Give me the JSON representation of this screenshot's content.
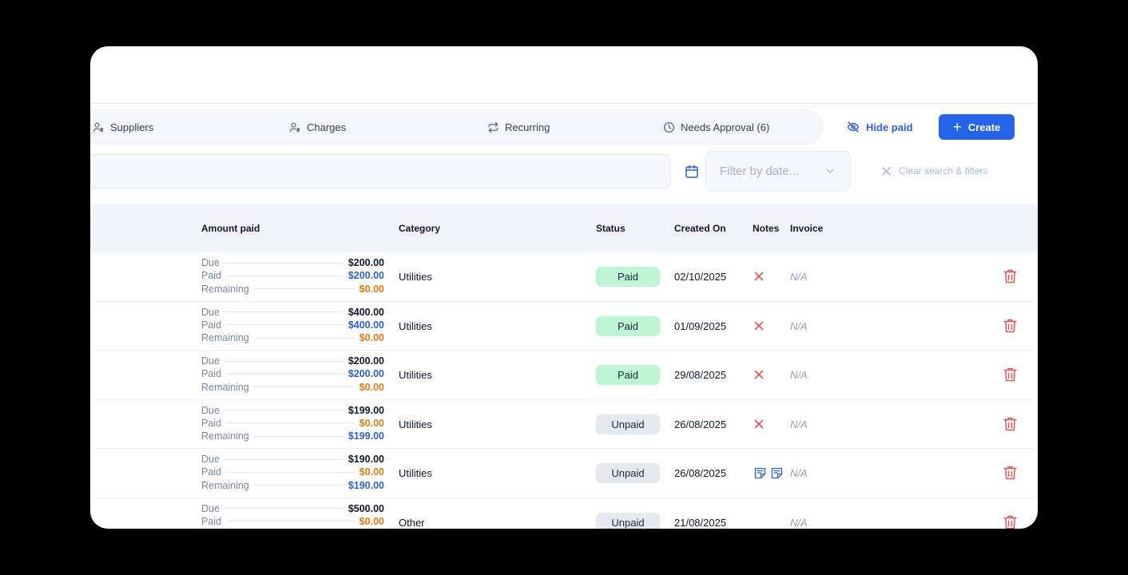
{
  "tabs": [
    {
      "label": "Suppliers",
      "icon": "suppliers-icon"
    },
    {
      "label": "Charges",
      "icon": "charges-icon"
    },
    {
      "label": "Recurring",
      "icon": "recurring-icon"
    },
    {
      "label": "Needs Approval (6)",
      "icon": "clock-icon"
    }
  ],
  "actions": {
    "hide_paid_label": "Hide paid",
    "create_label": "Create"
  },
  "filters": {
    "search_value": "",
    "date_placeholder": "Filter by date...",
    "clear_label": "Clear search & filters"
  },
  "table": {
    "headers": {
      "amount_paid": "Amount paid",
      "category": "Category",
      "status": "Status",
      "created_on": "Created On",
      "notes": "Notes",
      "invoice": "Invoice"
    },
    "line_labels": {
      "due": "Due",
      "paid": "Paid",
      "remaining": "Remaining"
    },
    "rows": [
      {
        "due": "$200.00",
        "paid": "$200.00",
        "remaining": "$0.00",
        "category": "Utilities",
        "status": "Paid",
        "created_on": "02/10/2025",
        "notes": "none",
        "invoice": "N/A"
      },
      {
        "due": "$400.00",
        "paid": "$400.00",
        "remaining": "$0.00",
        "category": "Utilities",
        "status": "Paid",
        "created_on": "01/09/2025",
        "notes": "none",
        "invoice": "N/A"
      },
      {
        "due": "$200.00",
        "paid": "$200.00",
        "remaining": "$0.00",
        "category": "Utilities",
        "status": "Paid",
        "created_on": "29/08/2025",
        "notes": "none",
        "invoice": "N/A"
      },
      {
        "due": "$199.00",
        "paid": "$0.00",
        "remaining": "$199.00",
        "category": "Utilities",
        "status": "Unpaid",
        "created_on": "26/08/2025",
        "notes": "none",
        "invoice": "N/A"
      },
      {
        "due": "$190.00",
        "paid": "$0.00",
        "remaining": "$190.00",
        "category": "Utilities",
        "status": "Unpaid",
        "created_on": "26/08/2025",
        "notes": "two",
        "invoice": "N/A"
      },
      {
        "due": "$500.00",
        "paid": "$0.00",
        "remaining": "",
        "category": "Other",
        "status": "Unpaid",
        "created_on": "21/08/2025",
        "notes": "empty",
        "invoice": "N/A"
      }
    ]
  },
  "colors": {
    "accent": "#2563eb",
    "paid_blue": "#2f5fcf",
    "unpaid_orange": "#e07b16",
    "delete_red": "#e05353",
    "paid_badge": "#bdf5d5",
    "unpaid_badge": "#e5e8ef"
  }
}
